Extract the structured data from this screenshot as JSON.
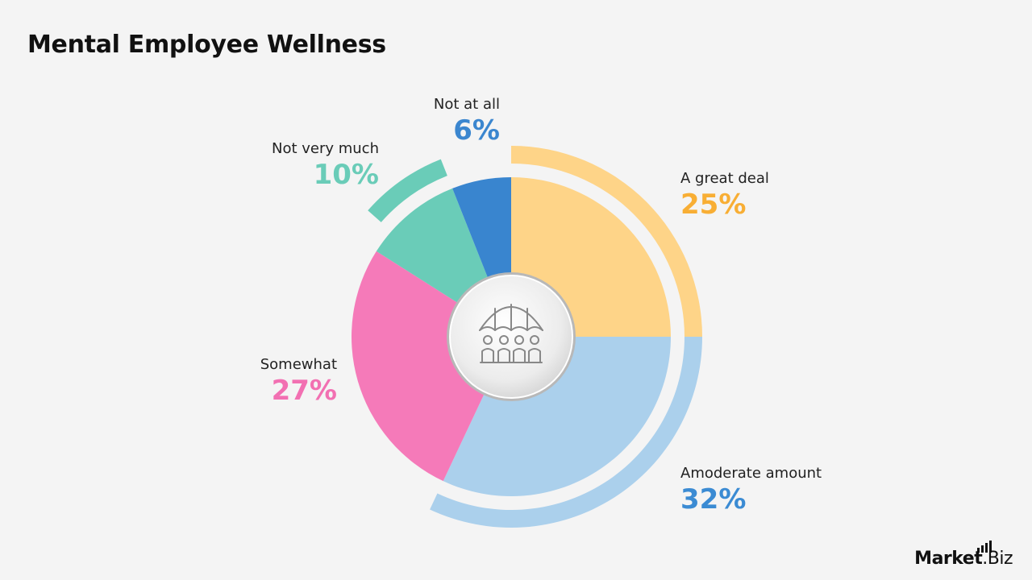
{
  "title": "Mental Employee Wellness",
  "chart_data": {
    "type": "pie",
    "title": "Mental Employee Wellness",
    "categories": [
      "A great deal",
      "Amoderate amount",
      "Somewhat",
      "Not very much",
      "Not at all"
    ],
    "values": [
      25,
      32,
      27,
      10,
      6
    ],
    "value_labels": [
      "25%",
      "32%",
      "27%",
      "10%",
      "6%"
    ],
    "colors": [
      "#fed488",
      "#abd0ec",
      "#f57ab9",
      "#6accb8",
      "#3985cf"
    ],
    "label_colors": [
      "#f8ae34",
      "#3b8bd3",
      "#f270b2",
      "#6accb8",
      "#3b86cf"
    ],
    "start_angle_deg": 0,
    "direction": "clockwise",
    "center_icon": "umbrella-group-icon"
  },
  "brand": {
    "name_part1": "Market",
    "name_part2": ".Biz",
    "icon": "bar-chart-icon"
  }
}
